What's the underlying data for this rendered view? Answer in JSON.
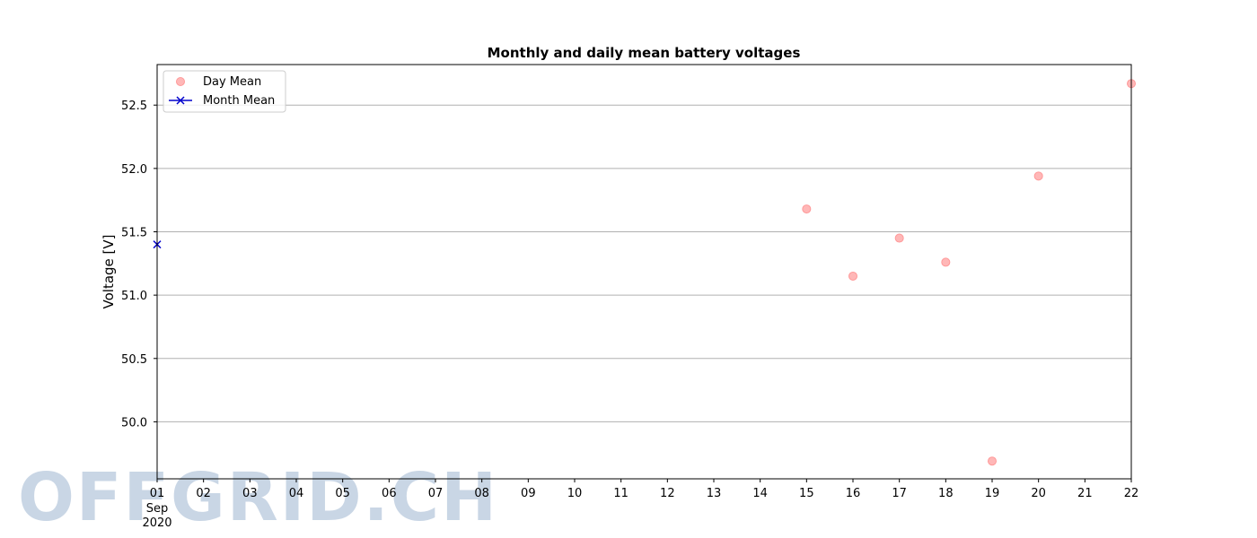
{
  "watermark": "OFFGRID.CH",
  "colors": {
    "day_mean": "#ff9999",
    "month_mean": "#0000cc",
    "grid": "#b0b0b0",
    "watermark": "#c9d6e5"
  },
  "chart_data": {
    "type": "scatter",
    "title": "Monthly and daily mean battery voltages",
    "xlabel": "",
    "ylabel": "Voltage [V]",
    "xlim": [
      1,
      22
    ],
    "ylim": [
      49.55,
      52.82
    ],
    "x_ticks": [
      "01",
      "02",
      "03",
      "04",
      "05",
      "06",
      "07",
      "08",
      "09",
      "10",
      "11",
      "12",
      "13",
      "14",
      "15",
      "16",
      "17",
      "18",
      "19",
      "20",
      "21",
      "22"
    ],
    "x_tick_sublabels": [
      "Sep",
      "2020"
    ],
    "y_ticks": [
      "50.0",
      "50.5",
      "51.0",
      "51.5",
      "52.0",
      "52.5"
    ],
    "y_tick_values": [
      50.0,
      50.5,
      51.0,
      51.5,
      52.0,
      52.5
    ],
    "grid": "y-major",
    "legend_position": "top-left",
    "series": [
      {
        "name": "Day Mean",
        "marker": "circle",
        "color": "#ff9999",
        "x": [
          15,
          16,
          17,
          18,
          19,
          20,
          22
        ],
        "y": [
          51.68,
          51.15,
          51.45,
          51.26,
          49.69,
          51.94,
          52.67
        ]
      },
      {
        "name": "Month Mean",
        "marker": "x",
        "color": "#0000cc",
        "x": [
          1
        ],
        "y": [
          51.4
        ]
      }
    ]
  }
}
